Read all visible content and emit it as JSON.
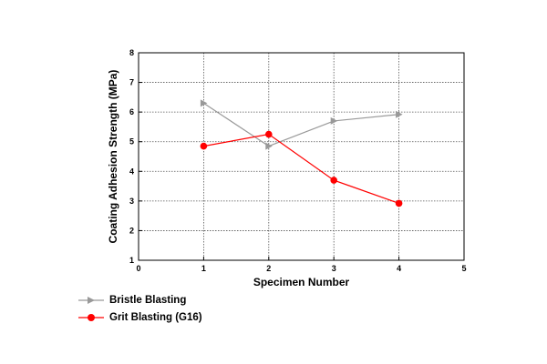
{
  "chart_data": {
    "type": "line",
    "xlabel": "Specimen Number",
    "ylabel": "Coating Adhesion Strength (MPa)",
    "xlim": [
      0,
      5
    ],
    "ylim": [
      1,
      8
    ],
    "xticks": [
      "0",
      "1",
      "2",
      "3",
      "4",
      "5"
    ],
    "yticks": [
      "1",
      "2",
      "3",
      "4",
      "5",
      "6",
      "7",
      "8"
    ],
    "grid": true,
    "legend_position": "bottom-left outside",
    "series": [
      {
        "name": "Bristle Blasting",
        "color": "#999999",
        "marker": "triangle-right",
        "x": [
          1,
          2,
          3,
          4
        ],
        "y": [
          6.3,
          4.85,
          5.7,
          5.92
        ]
      },
      {
        "name": "Grit Blasting (G16)",
        "color": "#ff0000",
        "marker": "circle",
        "x": [
          1,
          2,
          3,
          4
        ],
        "y": [
          4.85,
          5.25,
          3.7,
          2.92
        ]
      }
    ]
  }
}
